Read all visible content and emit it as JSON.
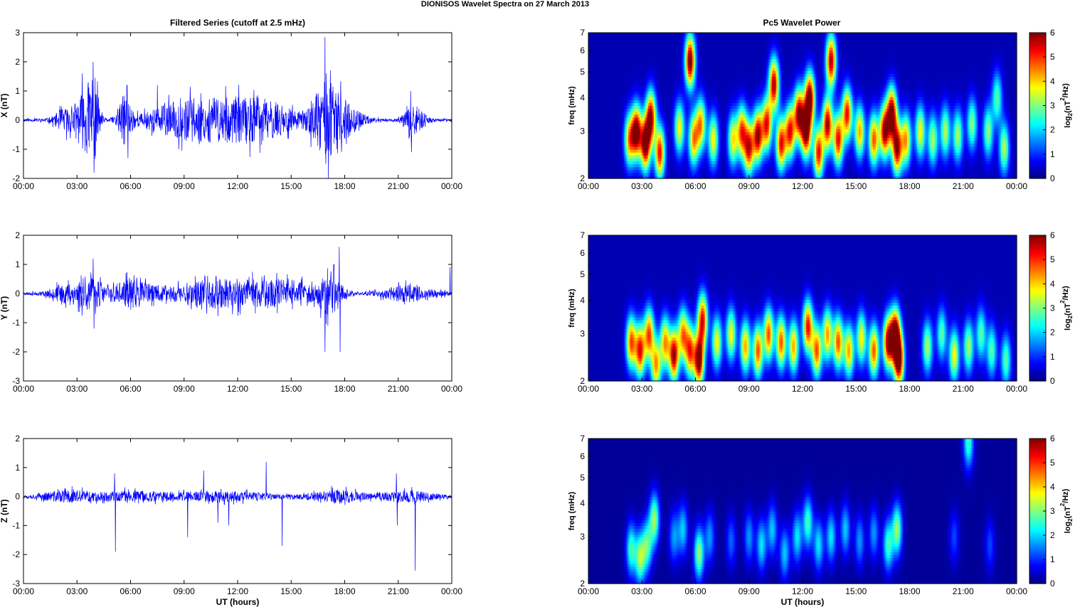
{
  "figure": {
    "title": "DIONISOS Wavelet Spectra on 27 March     2013",
    "left_title": "Filtered Series (cutoff at 2.5 mHz)",
    "right_title": "Pc5 Wavelet Power",
    "xlabel": "UT (hours)",
    "spec_ylabel": "freq (mHz)",
    "cbar_label_base": "log",
    "cbar_label_sub": "2",
    "cbar_label_paren": "(nT",
    "cbar_label_sup": "2",
    "cbar_label_end": "/Hz)"
  },
  "chart_data": [
    {
      "type": "line",
      "title": "Filtered Series (cutoff at 2.5 mHz)",
      "ylabel": "X (nT)",
      "xlabel": "",
      "xlim": [
        0,
        24
      ],
      "ylim": [
        -2,
        3
      ],
      "xticks": [
        "00:00",
        "03:00",
        "06:00",
        "09:00",
        "12:00",
        "15:00",
        "18:00",
        "21:00",
        "00:00"
      ],
      "yticks": [
        "-2",
        "-1",
        "0",
        "1",
        "2",
        "3"
      ],
      "color": "#0000ff",
      "baseline_noise": 0.05,
      "events": [
        {
          "t": 2.3,
          "amp": 0.35,
          "w": 0.6
        },
        {
          "t": 3.4,
          "amp": 0.9,
          "w": 0.6
        },
        {
          "t": 3.9,
          "amp": 1.3,
          "w": 0.3
        },
        {
          "t": 5.7,
          "amp": 0.8,
          "w": 0.4
        },
        {
          "t": 8.5,
          "amp": 0.4,
          "w": 2.0
        },
        {
          "t": 11.0,
          "amp": 0.55,
          "w": 2.5
        },
        {
          "t": 13.5,
          "amp": 0.5,
          "w": 2.0
        },
        {
          "t": 16.9,
          "amp": 1.1,
          "w": 0.8
        },
        {
          "t": 18.0,
          "amp": 0.5,
          "w": 1.0
        },
        {
          "t": 21.9,
          "amp": 0.45,
          "w": 0.6
        }
      ],
      "spikes": [
        {
          "t": 3.3,
          "v": 1.6
        },
        {
          "t": 3.9,
          "v": 2.0
        },
        {
          "t": 3.95,
          "v": -1.8
        },
        {
          "t": 5.8,
          "v": 1.2
        },
        {
          "t": 5.85,
          "v": -1.3
        },
        {
          "t": 7.5,
          "v": 1.2
        },
        {
          "t": 16.9,
          "v": 2.85
        },
        {
          "t": 16.95,
          "v": -1.5
        },
        {
          "t": 17.2,
          "v": 1.7
        },
        {
          "t": 21.7,
          "v": 1.0
        },
        {
          "t": 21.75,
          "v": -1.1
        }
      ],
      "seed": 11
    },
    {
      "type": "line",
      "ylabel": "Y (nT)",
      "xlabel": "",
      "xlim": [
        0,
        24
      ],
      "ylim": [
        -3,
        2
      ],
      "xticks": [
        "00:00",
        "03:00",
        "06:00",
        "09:00",
        "12:00",
        "15:00",
        "18:00",
        "21:00",
        "00:00"
      ],
      "yticks": [
        "-3",
        "-2",
        "-1",
        "0",
        "1",
        "2"
      ],
      "color": "#0000ff",
      "baseline_noise": 0.05,
      "events": [
        {
          "t": 2.5,
          "amp": 0.3,
          "w": 1.0
        },
        {
          "t": 3.8,
          "amp": 0.45,
          "w": 0.8
        },
        {
          "t": 6.0,
          "amp": 0.4,
          "w": 1.2
        },
        {
          "t": 9.5,
          "amp": 0.3,
          "w": 2.5
        },
        {
          "t": 12.5,
          "amp": 0.35,
          "w": 2.5
        },
        {
          "t": 15.0,
          "amp": 0.3,
          "w": 1.5
        },
        {
          "t": 17.2,
          "amp": 0.7,
          "w": 0.7
        },
        {
          "t": 21.5,
          "amp": 0.25,
          "w": 1.5
        }
      ],
      "spikes": [
        {
          "t": 3.9,
          "v": 1.2
        },
        {
          "t": 3.95,
          "v": -1.2
        },
        {
          "t": 16.9,
          "v": -2.0
        },
        {
          "t": 17.4,
          "v": 1.0
        },
        {
          "t": 17.7,
          "v": 1.6
        },
        {
          "t": 17.75,
          "v": -2.0
        },
        {
          "t": 23.9,
          "v": 0.9
        }
      ],
      "seed": 23
    },
    {
      "type": "line",
      "ylabel": "Z (nT)",
      "xlabel": "UT (hours)",
      "xlim": [
        0,
        24
      ],
      "ylim": [
        -3,
        2
      ],
      "xticks": [
        "00:00",
        "03:00",
        "06:00",
        "09:00",
        "12:00",
        "15:00",
        "18:00",
        "21:00",
        "00:00"
      ],
      "yticks": [
        "-3",
        "-2",
        "-1",
        "0",
        "1",
        "2"
      ],
      "color": "#0000ff",
      "baseline_noise": 0.05,
      "events": [
        {
          "t": 2.5,
          "amp": 0.18,
          "w": 1.5
        },
        {
          "t": 6.0,
          "amp": 0.15,
          "w": 2.0
        },
        {
          "t": 11.0,
          "amp": 0.15,
          "w": 3.0
        },
        {
          "t": 17.5,
          "amp": 0.2,
          "w": 1.5
        },
        {
          "t": 21.5,
          "amp": 0.18,
          "w": 1.5
        }
      ],
      "spikes": [
        {
          "t": 5.1,
          "v": 0.8
        },
        {
          "t": 5.15,
          "v": -1.9
        },
        {
          "t": 9.2,
          "v": -1.4
        },
        {
          "t": 10.1,
          "v": 0.9
        },
        {
          "t": 10.9,
          "v": -0.9
        },
        {
          "t": 11.5,
          "v": -1.0
        },
        {
          "t": 13.6,
          "v": 1.2
        },
        {
          "t": 14.5,
          "v": -1.7
        },
        {
          "t": 20.9,
          "v": 0.8
        },
        {
          "t": 20.95,
          "v": -1.0
        },
        {
          "t": 21.95,
          "v": -2.55
        }
      ],
      "seed": 37
    },
    {
      "type": "heatmap",
      "title": "Pc5 Wavelet Power",
      "ylabel": "freq (mHz)",
      "xlim": [
        0,
        24
      ],
      "ylim": [
        2,
        7
      ],
      "yscale": "log",
      "xticks": [
        "00:00",
        "03:00",
        "06:00",
        "09:00",
        "12:00",
        "15:00",
        "18:00",
        "21:00",
        "00:00"
      ],
      "yticks": [
        2,
        3,
        4,
        5,
        6,
        7
      ],
      "clim": [
        0,
        6
      ],
      "cbar_ticks": [
        "0",
        "1",
        "2",
        "3",
        "4",
        "5",
        "6"
      ],
      "colormap": "jet",
      "background": 0.3,
      "blobs": [
        {
          "t": 2.3,
          "f": 2.8,
          "p": 4.0
        },
        {
          "t": 2.7,
          "f": 3.0,
          "p": 6.0
        },
        {
          "t": 3.2,
          "f": 2.7,
          "p": 6.0
        },
        {
          "t": 3.5,
          "f": 3.4,
          "p": 5.5
        },
        {
          "t": 4.0,
          "f": 2.5,
          "p": 5.0
        },
        {
          "t": 5.1,
          "f": 3.1,
          "p": 3.5
        },
        {
          "t": 5.7,
          "f": 5.5,
          "p": 6.0
        },
        {
          "t": 5.9,
          "f": 2.8,
          "p": 4.0
        },
        {
          "t": 6.3,
          "f": 3.2,
          "p": 4.0
        },
        {
          "t": 7.0,
          "f": 2.8,
          "p": 3.5
        },
        {
          "t": 8.1,
          "f": 2.8,
          "p": 3.5
        },
        {
          "t": 8.6,
          "f": 3.0,
          "p": 4.5
        },
        {
          "t": 9.0,
          "f": 2.6,
          "p": 5.0
        },
        {
          "t": 9.5,
          "f": 2.9,
          "p": 5.5
        },
        {
          "t": 10.0,
          "f": 3.2,
          "p": 5.0
        },
        {
          "t": 10.4,
          "f": 4.5,
          "p": 5.5
        },
        {
          "t": 10.8,
          "f": 2.7,
          "p": 5.0
        },
        {
          "t": 11.3,
          "f": 3.0,
          "p": 5.0
        },
        {
          "t": 11.8,
          "f": 3.5,
          "p": 5.5
        },
        {
          "t": 12.2,
          "f": 3.0,
          "p": 5.8
        },
        {
          "t": 12.4,
          "f": 4.0,
          "p": 6.0
        },
        {
          "t": 12.9,
          "f": 2.5,
          "p": 5.0
        },
        {
          "t": 13.4,
          "f": 3.2,
          "p": 5.5
        },
        {
          "t": 13.6,
          "f": 5.5,
          "p": 5.5
        },
        {
          "t": 14.0,
          "f": 2.8,
          "p": 5.0
        },
        {
          "t": 14.5,
          "f": 3.5,
          "p": 5.0
        },
        {
          "t": 15.2,
          "f": 3.0,
          "p": 4.0
        },
        {
          "t": 16.0,
          "f": 2.8,
          "p": 4.5
        },
        {
          "t": 16.6,
          "f": 3.0,
          "p": 5.5
        },
        {
          "t": 17.0,
          "f": 3.5,
          "p": 6.0
        },
        {
          "t": 17.3,
          "f": 2.6,
          "p": 5.5
        },
        {
          "t": 17.8,
          "f": 2.8,
          "p": 4.0
        },
        {
          "t": 18.6,
          "f": 3.0,
          "p": 3.5
        },
        {
          "t": 19.3,
          "f": 2.8,
          "p": 3.0
        },
        {
          "t": 20.0,
          "f": 3.0,
          "p": 3.0
        },
        {
          "t": 20.7,
          "f": 2.9,
          "p": 3.0
        },
        {
          "t": 21.5,
          "f": 3.2,
          "p": 2.8
        },
        {
          "t": 22.4,
          "f": 3.0,
          "p": 2.8
        },
        {
          "t": 22.9,
          "f": 4.0,
          "p": 2.5
        },
        {
          "t": 23.3,
          "f": 2.6,
          "p": 3.0
        }
      ]
    },
    {
      "type": "heatmap",
      "ylabel": "freq (mHz)",
      "xlim": [
        0,
        24
      ],
      "ylim": [
        2,
        7
      ],
      "yscale": "log",
      "xticks": [
        "00:00",
        "03:00",
        "06:00",
        "09:00",
        "12:00",
        "15:00",
        "18:00",
        "21:00",
        "00:00"
      ],
      "yticks": [
        2,
        3,
        4,
        5,
        6,
        7
      ],
      "clim": [
        0,
        6
      ],
      "cbar_ticks": [
        "0",
        "1",
        "2",
        "3",
        "4",
        "5",
        "6"
      ],
      "colormap": "jet",
      "background": 0.3,
      "blobs": [
        {
          "t": 2.4,
          "f": 2.8,
          "p": 4.5
        },
        {
          "t": 2.9,
          "f": 2.6,
          "p": 5.0
        },
        {
          "t": 3.4,
          "f": 3.0,
          "p": 4.5
        },
        {
          "t": 3.8,
          "f": 2.3,
          "p": 4.0
        },
        {
          "t": 4.3,
          "f": 2.8,
          "p": 4.0
        },
        {
          "t": 4.8,
          "f": 2.5,
          "p": 5.5
        },
        {
          "t": 5.3,
          "f": 3.0,
          "p": 4.0
        },
        {
          "t": 5.7,
          "f": 2.6,
          "p": 4.5
        },
        {
          "t": 6.2,
          "f": 2.4,
          "p": 6.0
        },
        {
          "t": 6.4,
          "f": 3.4,
          "p": 5.0
        },
        {
          "t": 7.2,
          "f": 2.8,
          "p": 3.5
        },
        {
          "t": 8.0,
          "f": 3.0,
          "p": 3.5
        },
        {
          "t": 8.8,
          "f": 2.7,
          "p": 4.0
        },
        {
          "t": 9.5,
          "f": 2.6,
          "p": 4.5
        },
        {
          "t": 10.1,
          "f": 3.0,
          "p": 4.5
        },
        {
          "t": 10.8,
          "f": 2.8,
          "p": 4.5
        },
        {
          "t": 11.5,
          "f": 2.7,
          "p": 4.0
        },
        {
          "t": 12.3,
          "f": 3.2,
          "p": 5.0
        },
        {
          "t": 12.8,
          "f": 2.6,
          "p": 4.5
        },
        {
          "t": 13.4,
          "f": 3.0,
          "p": 4.0
        },
        {
          "t": 14.0,
          "f": 2.8,
          "p": 4.5
        },
        {
          "t": 14.6,
          "f": 2.6,
          "p": 4.0
        },
        {
          "t": 15.3,
          "f": 2.9,
          "p": 3.5
        },
        {
          "t": 16.0,
          "f": 2.6,
          "p": 4.5
        },
        {
          "t": 16.8,
          "f": 2.8,
          "p": 5.5
        },
        {
          "t": 17.2,
          "f": 3.0,
          "p": 6.0
        },
        {
          "t": 17.4,
          "f": 2.4,
          "p": 6.0
        },
        {
          "t": 19.0,
          "f": 2.7,
          "p": 3.0
        },
        {
          "t": 19.8,
          "f": 3.0,
          "p": 2.5
        },
        {
          "t": 20.5,
          "f": 2.5,
          "p": 3.5
        },
        {
          "t": 21.3,
          "f": 2.7,
          "p": 3.0
        },
        {
          "t": 22.0,
          "f": 3.0,
          "p": 2.5
        },
        {
          "t": 22.6,
          "f": 2.6,
          "p": 2.5
        },
        {
          "t": 23.4,
          "f": 2.4,
          "p": 2.5
        }
      ]
    },
    {
      "type": "heatmap",
      "ylabel": "freq (mHz)",
      "xlabel": "UT (hours)",
      "xlim": [
        0,
        24
      ],
      "ylim": [
        2,
        7
      ],
      "yscale": "log",
      "xticks": [
        "00:00",
        "03:00",
        "06:00",
        "09:00",
        "12:00",
        "15:00",
        "18:00",
        "21:00",
        "00:00"
      ],
      "yticks": [
        2,
        3,
        4,
        5,
        6,
        7
      ],
      "clim": [
        0,
        6
      ],
      "cbar_ticks": [
        "0",
        "1",
        "2",
        "3",
        "4",
        "5",
        "6"
      ],
      "colormap": "jet",
      "background": 0.15,
      "blobs": [
        {
          "t": 2.4,
          "f": 2.7,
          "p": 2.5
        },
        {
          "t": 2.9,
          "f": 2.5,
          "p": 3.0
        },
        {
          "t": 3.3,
          "f": 2.8,
          "p": 2.5
        },
        {
          "t": 3.7,
          "f": 3.5,
          "p": 3.0
        },
        {
          "t": 4.8,
          "f": 3.0,
          "p": 1.5
        },
        {
          "t": 5.3,
          "f": 3.2,
          "p": 1.8
        },
        {
          "t": 6.2,
          "f": 2.6,
          "p": 3.0
        },
        {
          "t": 6.8,
          "f": 3.0,
          "p": 1.5
        },
        {
          "t": 8.0,
          "f": 2.9,
          "p": 1.2
        },
        {
          "t": 9.0,
          "f": 3.0,
          "p": 1.5
        },
        {
          "t": 9.7,
          "f": 2.8,
          "p": 2.0
        },
        {
          "t": 10.3,
          "f": 3.2,
          "p": 1.8
        },
        {
          "t": 11.0,
          "f": 2.6,
          "p": 1.8
        },
        {
          "t": 11.7,
          "f": 3.0,
          "p": 2.0
        },
        {
          "t": 12.3,
          "f": 3.4,
          "p": 2.5
        },
        {
          "t": 12.9,
          "f": 2.8,
          "p": 2.0
        },
        {
          "t": 13.6,
          "f": 3.0,
          "p": 2.0
        },
        {
          "t": 14.4,
          "f": 3.2,
          "p": 1.8
        },
        {
          "t": 15.2,
          "f": 2.9,
          "p": 1.5
        },
        {
          "t": 16.0,
          "f": 3.1,
          "p": 1.5
        },
        {
          "t": 16.8,
          "f": 2.8,
          "p": 2.5
        },
        {
          "t": 17.3,
          "f": 3.2,
          "p": 3.0
        },
        {
          "t": 20.5,
          "f": 3.0,
          "p": 1.0
        },
        {
          "t": 21.3,
          "f": 6.8,
          "p": 2.5
        },
        {
          "t": 22.5,
          "f": 2.8,
          "p": 1.0
        }
      ]
    }
  ]
}
